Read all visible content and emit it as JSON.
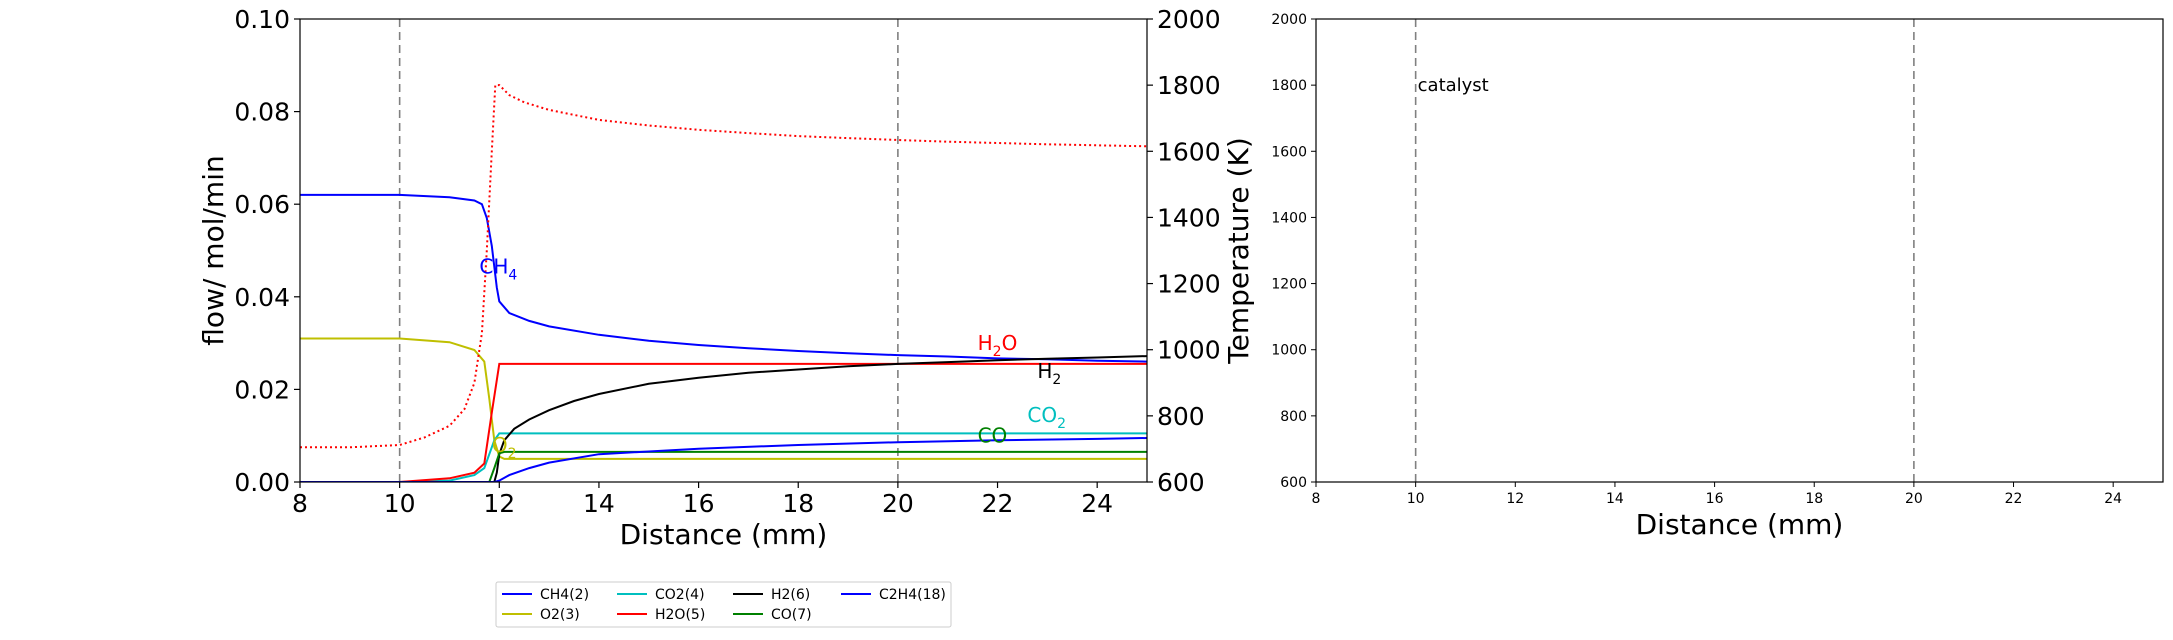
{
  "chart_data": [
    {
      "type": "line",
      "xlabel": "Distance (mm)",
      "ylabel": "flow/ mol/min",
      "y2label": "Temperature (K)",
      "xlim": [
        8,
        25
      ],
      "ylim": [
        0,
        0.1
      ],
      "y2lim": [
        600,
        2000
      ],
      "xticks": [
        "8",
        "10",
        "12",
        "14",
        "16",
        "18",
        "20",
        "22",
        "24"
      ],
      "yticks": [
        "0.00",
        "0.02",
        "0.04",
        "0.06",
        "0.08",
        "0.10"
      ],
      "y2ticks": [
        "600",
        "800",
        "1000",
        "1200",
        "1400",
        "1600",
        "1800",
        "2000"
      ],
      "vlines": [
        10,
        20
      ],
      "grid": false,
      "legend_position": "bottom",
      "series": [
        {
          "name": "CH4(2)",
          "color": "#0000ff",
          "axis": "left",
          "label": "CH4",
          "x": [
            8,
            9,
            10,
            11,
            11.5,
            11.65,
            11.75,
            11.85,
            11.95,
            12.0,
            12.2,
            12.6,
            13,
            14,
            15,
            16,
            17,
            18,
            19,
            20,
            21,
            22,
            23,
            24,
            25
          ],
          "y": [
            0.062,
            0.062,
            0.062,
            0.0615,
            0.0608,
            0.06,
            0.057,
            0.051,
            0.042,
            0.039,
            0.0365,
            0.0348,
            0.0336,
            0.0318,
            0.0305,
            0.0296,
            0.0289,
            0.0283,
            0.0278,
            0.0274,
            0.0271,
            0.0267,
            0.0265,
            0.0262,
            0.026
          ]
        },
        {
          "name": "O2(3)",
          "color": "#bfbf00",
          "axis": "left",
          "label": "O2",
          "x": [
            8,
            9,
            10,
            11,
            11.5,
            11.7,
            11.8,
            11.9,
            12.0,
            12.1,
            13,
            16,
            20,
            25
          ],
          "y": [
            0.031,
            0.031,
            0.031,
            0.0302,
            0.0285,
            0.026,
            0.018,
            0.009,
            0.0055,
            0.005,
            0.005,
            0.005,
            0.005,
            0.005
          ]
        },
        {
          "name": "CO2(4)",
          "color": "#00bfbf",
          "axis": "left",
          "label": "CO2",
          "x": [
            8,
            10,
            11,
            11.5,
            11.7,
            11.8,
            11.9,
            12.0,
            12.1,
            13,
            16,
            20,
            25
          ],
          "y": [
            0,
            0,
            0.0003,
            0.0015,
            0.003,
            0.006,
            0.009,
            0.0105,
            0.0105,
            0.0105,
            0.0105,
            0.0105,
            0.0105
          ]
        },
        {
          "name": "H2O(5)",
          "color": "#ff0000",
          "axis": "left",
          "label": "H2O",
          "x": [
            8,
            10,
            11,
            11.5,
            11.7,
            11.85,
            12.0,
            12.1,
            13,
            16,
            20,
            22,
            25
          ],
          "y": [
            0,
            0,
            0.0008,
            0.002,
            0.004,
            0.015,
            0.0255,
            0.0255,
            0.0255,
            0.0255,
            0.0255,
            0.0255,
            0.0255
          ]
        },
        {
          "name": "H2(6)",
          "color": "#000000",
          "axis": "left",
          "label": "H2",
          "x": [
            8,
            10,
            11.9,
            11.95,
            12.0,
            12.1,
            12.3,
            12.6,
            13,
            13.5,
            14,
            15,
            16,
            17,
            18,
            19,
            20,
            21,
            22,
            23,
            24,
            25
          ],
          "y": [
            0,
            0,
            0,
            0.002,
            0.006,
            0.009,
            0.0115,
            0.0135,
            0.0155,
            0.0175,
            0.019,
            0.0212,
            0.0225,
            0.0236,
            0.0243,
            0.025,
            0.0255,
            0.0259,
            0.0263,
            0.0266,
            0.0269,
            0.0272
          ]
        },
        {
          "name": "CO(7)",
          "color": "#008000",
          "axis": "left",
          "label": "CO",
          "x": [
            8,
            10,
            11.8,
            11.9,
            12.0,
            12.1,
            13,
            16,
            20,
            25
          ],
          "y": [
            0,
            0,
            0,
            0.003,
            0.0062,
            0.0065,
            0.0065,
            0.0065,
            0.0065,
            0.0065
          ]
        },
        {
          "name": "C2H4(18)",
          "color": "#0000ff",
          "axis": "left",
          "x": [
            8,
            10,
            11.9,
            12.0,
            12.2,
            12.6,
            13,
            14,
            16,
            18,
            20,
            22,
            24,
            25
          ],
          "y": [
            0,
            0,
            0,
            0.0003,
            0.0015,
            0.003,
            0.0042,
            0.006,
            0.0072,
            0.008,
            0.0086,
            0.009,
            0.0093,
            0.0095
          ]
        },
        {
          "name": "Temperature",
          "color": "#ff0000",
          "axis": "right",
          "dashed": true,
          "x": [
            8,
            9,
            10,
            10.5,
            11,
            11.3,
            11.5,
            11.65,
            11.75,
            11.85,
            11.92,
            12.0,
            12.2,
            12.5,
            13,
            14,
            15,
            16,
            17,
            18,
            19,
            20,
            21,
            22,
            23,
            24,
            25
          ],
          "y": [
            705,
            705,
            712,
            735,
            770,
            820,
            900,
            1050,
            1300,
            1600,
            1800,
            1800,
            1770,
            1748,
            1725,
            1695,
            1678,
            1665,
            1655,
            1646,
            1640,
            1634,
            1629,
            1625,
            1621,
            1618,
            1615
          ]
        }
      ],
      "annotations": [
        {
          "base": "CH",
          "sub": "4",
          "x": 11.6,
          "y": 0.045,
          "color": "#0000ff"
        },
        {
          "base": "H",
          "sub": "2",
          "tail": "O",
          "x": 21.6,
          "y": 0.0285,
          "color": "#ff0000"
        },
        {
          "base": "H",
          "sub": "2",
          "x": 22.8,
          "y": 0.0225,
          "color": "#000000"
        },
        {
          "base": "CO",
          "sub": "2",
          "x": 22.6,
          "y": 0.013,
          "color": "#00bfbf"
        },
        {
          "base": "CO",
          "sub": "",
          "x": 21.6,
          "y": 0.0085,
          "color": "#008000"
        },
        {
          "base": "O",
          "sub": "2",
          "x": 11.85,
          "y": 0.0065,
          "color": "#bfbf00"
        }
      ]
    },
    {
      "type": "line",
      "xlabel": "Distance (mm)",
      "xlim": [
        8,
        25
      ],
      "ylim": [
        600,
        2000
      ],
      "xticks": [
        "8",
        "10",
        "12",
        "14",
        "16",
        "18",
        "20",
        "22",
        "24"
      ],
      "yticks": [
        "600",
        "800",
        "1000",
        "1200",
        "1400",
        "1600",
        "1800",
        "2000"
      ],
      "vlines": [
        10,
        20
      ],
      "grid": false,
      "annotations": [
        {
          "text": "catalyst",
          "x": 10,
          "y": 1800
        }
      ],
      "series": []
    }
  ],
  "legend": {
    "entries": [
      {
        "label": "CH4(2)",
        "color": "#0000ff"
      },
      {
        "label": "CO2(4)",
        "color": "#00bfbf"
      },
      {
        "label": "H2(6)",
        "color": "#000000"
      },
      {
        "label": "C2H4(18)",
        "color": "#0000ff"
      },
      {
        "label": "O2(3)",
        "color": "#bfbf00"
      },
      {
        "label": "H2O(5)",
        "color": "#ff0000"
      },
      {
        "label": "CO(7)",
        "color": "#008000"
      }
    ]
  }
}
